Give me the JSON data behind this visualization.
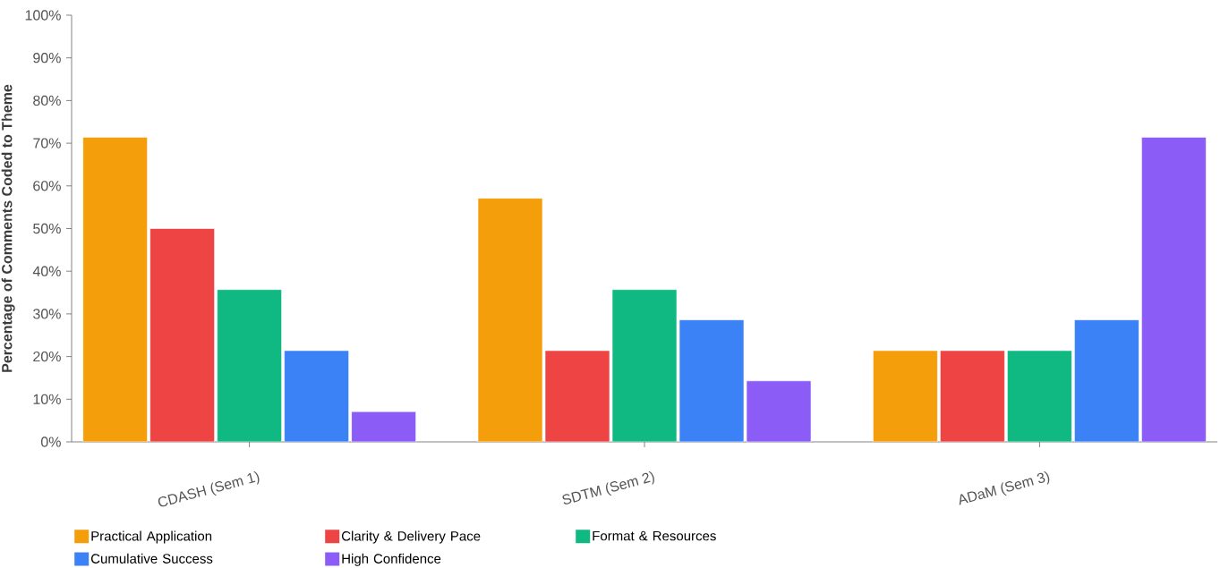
{
  "chart_data": {
    "type": "bar",
    "ylabel": "Percentage of Comments Coded to Theme",
    "categories": [
      "CDASH (Sem 1)",
      "SDTM (Sem 2)",
      "ADaM (Sem 3)"
    ],
    "series": [
      {
        "name": "Practical Application",
        "color": "#f59e0b",
        "values": [
          71.4,
          57.1,
          21.4
        ]
      },
      {
        "name": "Clarity & Delivery Pace",
        "color": "#ef4444",
        "values": [
          50,
          21.4,
          21.4
        ]
      },
      {
        "name": "Format & Resources",
        "color": "#10b981",
        "values": [
          35.7,
          35.7,
          21.4
        ]
      },
      {
        "name": "Cumulative Success",
        "color": "#3b82f6",
        "values": [
          21.4,
          28.6,
          28.6
        ]
      },
      {
        "name": "High Confidence",
        "color": "#8b5cf6",
        "values": [
          7.1,
          14.3,
          71.4
        ]
      }
    ],
    "ylim": [
      0,
      100
    ],
    "yticks": [
      {
        "value": 0,
        "label": "0%"
      },
      {
        "value": 10,
        "label": "10%"
      },
      {
        "value": 20,
        "label": "20%"
      },
      {
        "value": 30,
        "label": "30%"
      },
      {
        "value": 40,
        "label": "40%"
      },
      {
        "value": 50,
        "label": "50%"
      },
      {
        "value": 60,
        "label": "60%"
      },
      {
        "value": 70,
        "label": "70%"
      },
      {
        "value": 80,
        "label": "80%"
      },
      {
        "value": 90,
        "label": "90%"
      },
      {
        "value": 100,
        "label": "100%"
      }
    ],
    "grid": false,
    "legend": "bottom"
  }
}
